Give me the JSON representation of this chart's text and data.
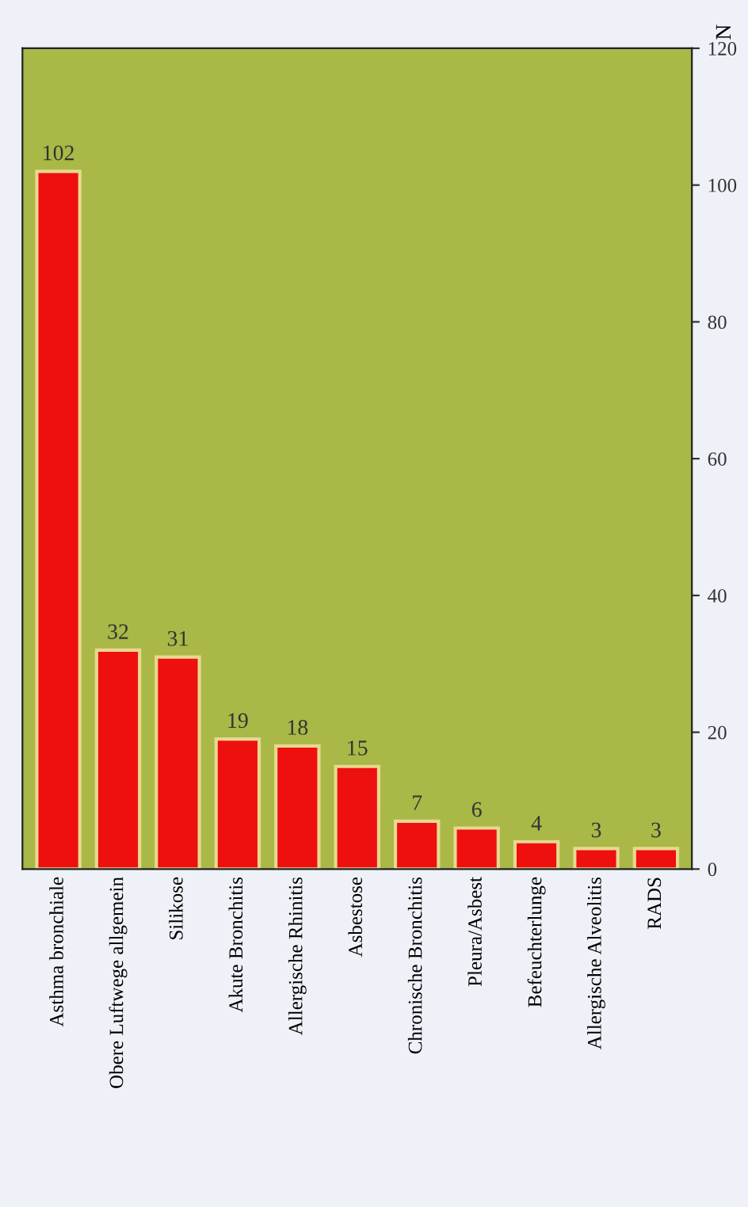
{
  "chart_data": {
    "type": "bar",
    "ylabel": "N",
    "categories": [
      "Asthma bronchiale",
      "Obere Luftwege allgemein",
      "Silikose",
      "Akute Bronchitis",
      "Allergische Rhinitis",
      "Asbestose",
      "Chronische Bronchitis",
      "Pleura/Asbest",
      "Befeuchterlunge",
      "Allergische Alveolitis",
      "RADS"
    ],
    "values": [
      102,
      32,
      31,
      19,
      18,
      15,
      7,
      6,
      4,
      3,
      3
    ],
    "color": "#ee0f0f",
    "ylim": [
      0,
      120
    ],
    "yticks": [
      0,
      20,
      40,
      60,
      80,
      100,
      120
    ],
    "data_labels": true,
    "grid": false
  }
}
